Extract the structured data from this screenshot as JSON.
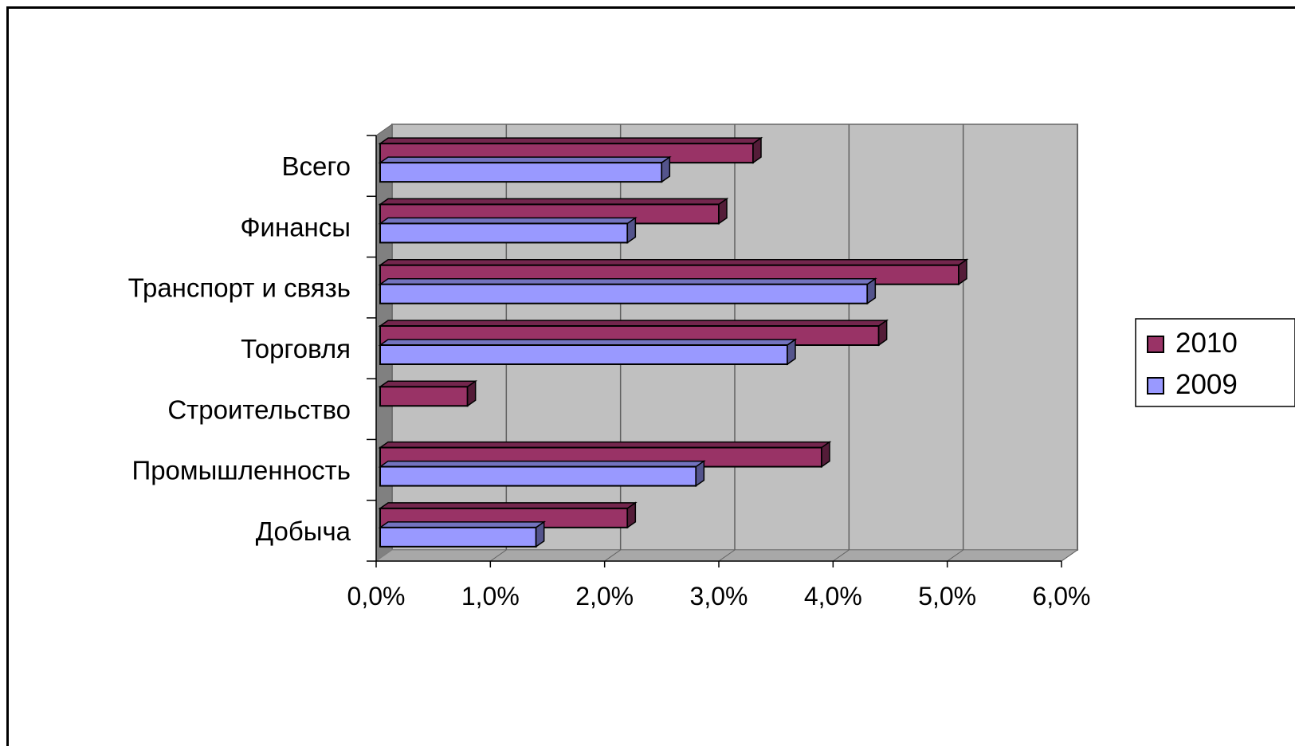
{
  "chart_data": {
    "type": "bar",
    "orientation": "horizontal",
    "style": "3d",
    "categories": [
      "Всего",
      "Финансы",
      "Транспорт и связь",
      "Торговля",
      "Строительство",
      "Промышленность",
      "Добыча"
    ],
    "series": [
      {
        "name": "2010",
        "color": "#993366",
        "values": [
          3.3,
          3.0,
          5.1,
          4.4,
          0.8,
          3.9,
          2.2
        ]
      },
      {
        "name": "2009",
        "color": "#9999ff",
        "values": [
          2.5,
          2.2,
          4.3,
          3.6,
          null,
          2.8,
          1.4
        ]
      }
    ],
    "xlim": [
      0,
      6
    ],
    "xticks": [
      "0,0%",
      "1,0%",
      "2,0%",
      "3,0%",
      "4,0%",
      "5,0%",
      "6,0%"
    ],
    "grid": true,
    "plot_background": "#c0c0c0",
    "legend_position": "right"
  }
}
